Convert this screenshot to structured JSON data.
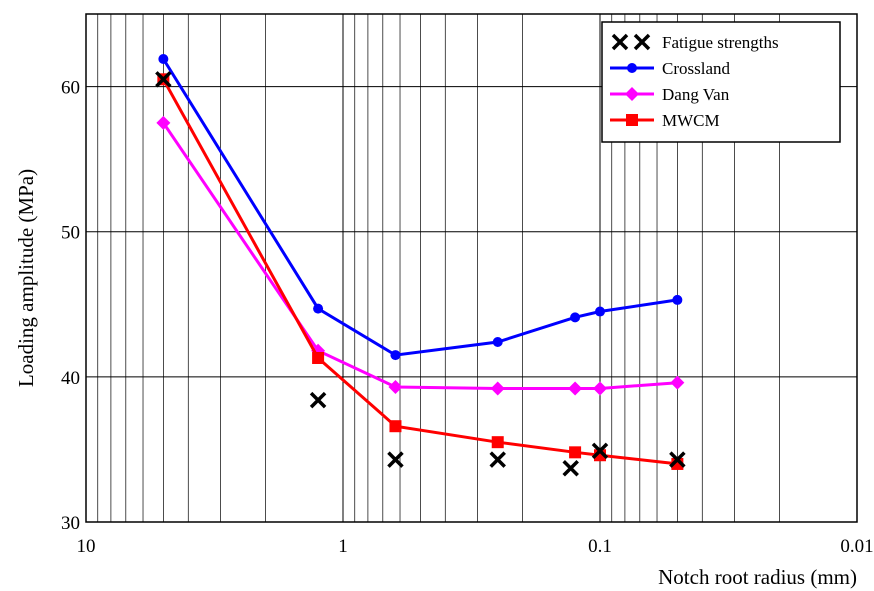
{
  "chart_data": {
    "type": "line",
    "title": "",
    "xlabel": "Notch root radius (mm)",
    "ylabel": "Loading amplitude  (MPa)",
    "x_scale": "log",
    "x_reversed": true,
    "xlim": [
      10,
      0.01
    ],
    "ylim": [
      30,
      65
    ],
    "x_ticks": [
      {
        "value": 10,
        "label": "10"
      },
      {
        "value": 1,
        "label": "1"
      },
      {
        "value": 0.1,
        "label": "0.1"
      },
      {
        "value": 0.01,
        "label": "0.01"
      }
    ],
    "y_ticks": [
      {
        "value": 30,
        "label": "30"
      },
      {
        "value": 40,
        "label": "40"
      },
      {
        "value": 50,
        "label": "50"
      },
      {
        "value": 60,
        "label": "60"
      }
    ],
    "grid": true,
    "legend_position": "top-right",
    "x": [
      5,
      1.25,
      0.625,
      0.25,
      0.125,
      0.1,
      0.05
    ],
    "series": [
      {
        "name": "Fatigue strengths",
        "kind": "scatter",
        "marker": "x",
        "color": "#000000",
        "points": [
          [
            5,
            60.5
          ],
          [
            1.25,
            38.4
          ],
          [
            0.625,
            34.3
          ],
          [
            0.25,
            34.3
          ],
          [
            0.13,
            33.7
          ],
          [
            0.1,
            34.9
          ],
          [
            0.05,
            34.3
          ]
        ]
      },
      {
        "name": "Crossland",
        "kind": "line",
        "marker": "circle",
        "color": "#0000ff",
        "values": [
          61.9,
          44.7,
          41.5,
          42.4,
          44.1,
          44.5,
          45.3
        ]
      },
      {
        "name": "Dang Van",
        "kind": "line",
        "marker": "diamond",
        "color": "#ff00ff",
        "values": [
          57.5,
          41.8,
          39.3,
          39.2,
          39.2,
          39.2,
          39.6
        ]
      },
      {
        "name": "MWCM",
        "kind": "line",
        "marker": "square",
        "color": "#ff0000",
        "values": [
          60.5,
          41.3,
          36.6,
          35.5,
          34.8,
          34.6,
          34.0
        ]
      }
    ]
  }
}
